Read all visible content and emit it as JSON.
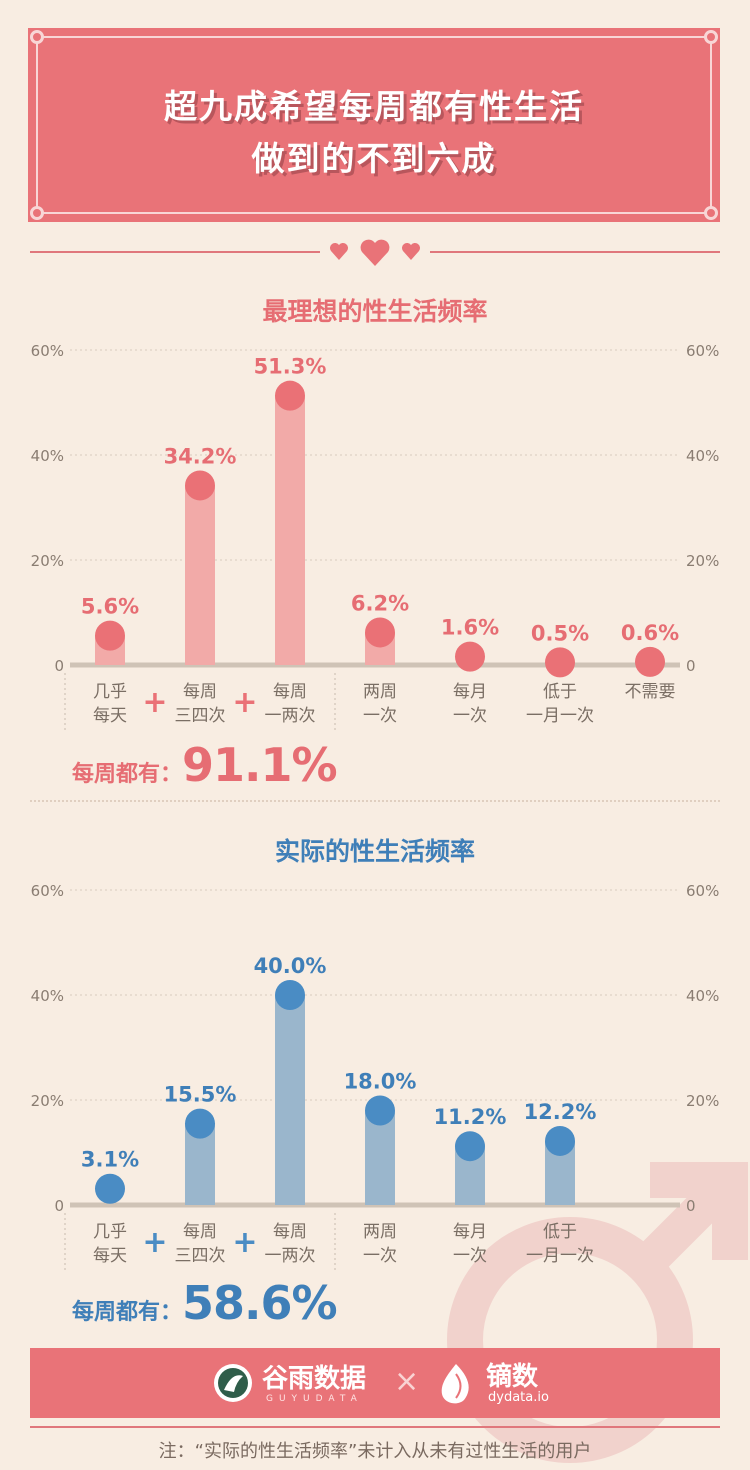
{
  "banner": {
    "line1": "超九成希望每周都有性生活",
    "line2": "做到的不到六成"
  },
  "colors": {
    "pink": "#e97378",
    "pink_bar": "#f2aaa8",
    "pink_dot": "#ea7176",
    "blue_bar": "#9ab6cc",
    "blue_dot": "#4a8cc4",
    "bg": "#f8ede2",
    "axis": "#cfc3b6"
  },
  "ideal": {
    "title": "最理想的性生活频率",
    "total_label": "每周都有：",
    "total_value": "91.1%"
  },
  "actual": {
    "title": "实际的性生活频率",
    "total_label": "每周都有：",
    "total_value": "58.6%"
  },
  "chart_data": [
    {
      "type": "bar",
      "title": "最理想的性生活频率",
      "categories": [
        [
          "几乎",
          "每天"
        ],
        [
          "每周",
          "三四次"
        ],
        [
          "每周",
          "一两次"
        ],
        [
          "两周",
          "一次"
        ],
        [
          "每月",
          "一次"
        ],
        [
          "低于",
          "一月一次"
        ],
        [
          "不需要"
        ]
      ],
      "values": [
        5.6,
        34.2,
        51.3,
        6.2,
        1.6,
        0.5,
        0.6
      ],
      "value_labels": [
        "5.6%",
        "34.2%",
        "51.3%",
        "6.2%",
        "1.6%",
        "0.5%",
        "0.6%"
      ],
      "yticks": [
        "0",
        "20%",
        "40%",
        "60%"
      ],
      "ylim": [
        0,
        60
      ],
      "grid": true
    },
    {
      "type": "bar",
      "title": "实际的性生活频率",
      "categories": [
        [
          "几乎",
          "每天"
        ],
        [
          "每周",
          "三四次"
        ],
        [
          "每周",
          "一两次"
        ],
        [
          "两周",
          "一次"
        ],
        [
          "每月",
          "一次"
        ],
        [
          "低于",
          "一月一次"
        ]
      ],
      "values": [
        3.1,
        15.5,
        40.0,
        18.0,
        11.2,
        12.2
      ],
      "value_labels": [
        "3.1%",
        "15.5%",
        "40.0%",
        "18.0%",
        "11.2%",
        "12.2%"
      ],
      "yticks": [
        "0",
        "20%",
        "40%",
        "60%"
      ],
      "ylim": [
        0,
        60
      ],
      "grid": true
    }
  ],
  "footer": {
    "logo1": "谷雨数据",
    "logo1_sub": "GUYUDATA",
    "separator": "×",
    "logo2": "镝数",
    "logo2_sub": "dydata.io"
  },
  "note": "注：“实际的性生活频率”未计入从未有过性生活的用户"
}
